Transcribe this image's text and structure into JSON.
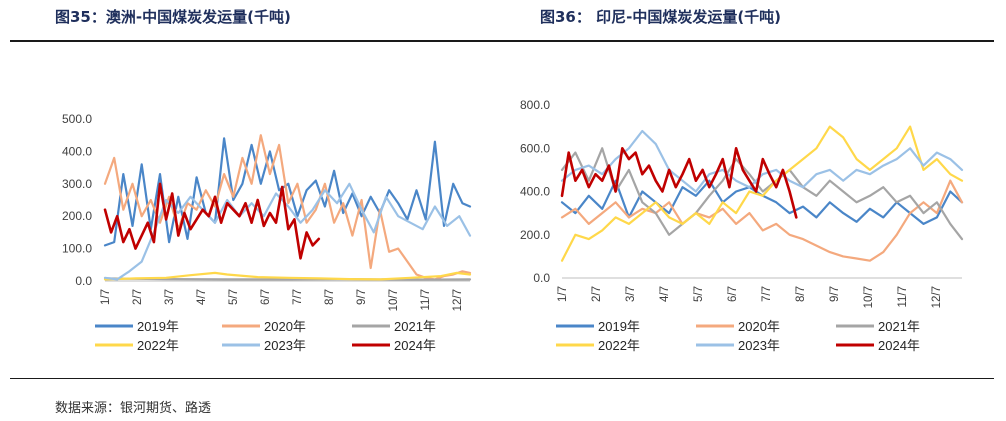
{
  "figures": {
    "left_title": "图35：澳洲-中国煤炭发运量(千吨)",
    "right_title": "图36：  印尼-中国煤炭发运量(千吨)"
  },
  "source_text": "数据来源：银河期货、路透",
  "colors": {
    "2019年": "#4a86c8",
    "2020年": "#f4a97e",
    "2021年": "#a5a5a5",
    "2022年": "#ffd84a",
    "2023年": "#9bc1e6",
    "2024年": "#c00000"
  },
  "chart_data": [
    {
      "type": "line",
      "title": "澳洲-中国煤炭发运量(千吨)",
      "x_tick_labels": [
        "1/7",
        "2/7",
        "3/7",
        "4/7",
        "5/7",
        "6/7",
        "7/7",
        "8/7",
        "9/7",
        "10/7",
        "11/7",
        "12/7"
      ],
      "y_tick_labels": [
        "0.0",
        "100.0",
        "200.0",
        "300.0",
        "400.0",
        "500.0"
      ],
      "ylim": [
        0,
        500
      ],
      "xlim": [
        1,
        12.95
      ],
      "grid": false,
      "legend_position": "bottom",
      "series": [
        {
          "name": "2019年",
          "x": [
            1.0,
            1.3,
            1.6,
            1.9,
            2.2,
            2.5,
            2.8,
            3.1,
            3.4,
            3.7,
            4.0,
            4.3,
            4.6,
            4.9,
            5.2,
            5.5,
            5.8,
            6.1,
            6.4,
            6.7,
            7.0,
            7.3,
            7.6,
            7.9,
            8.2,
            8.5,
            8.8,
            9.1,
            9.4,
            9.7,
            10.0,
            10.3,
            10.6,
            10.9,
            11.2,
            11.5,
            11.8,
            12.1,
            12.4,
            12.7,
            12.95
          ],
          "y": [
            110,
            120,
            330,
            170,
            360,
            160,
            330,
            120,
            260,
            130,
            320,
            210,
            180,
            440,
            250,
            300,
            420,
            300,
            400,
            280,
            300,
            200,
            280,
            310,
            230,
            340,
            210,
            270,
            200,
            260,
            210,
            280,
            240,
            190,
            280,
            190,
            430,
            170,
            300,
            240,
            230
          ]
        },
        {
          "name": "2020年",
          "x": [
            1.0,
            1.3,
            1.6,
            1.9,
            2.2,
            2.5,
            2.8,
            3.1,
            3.4,
            3.7,
            4.0,
            4.3,
            4.6,
            4.9,
            5.2,
            5.5,
            5.8,
            6.1,
            6.4,
            6.7,
            7.0,
            7.3,
            7.6,
            7.9,
            8.2,
            8.5,
            8.8,
            9.1,
            9.4,
            9.7,
            10.0,
            10.3,
            10.6,
            10.9,
            11.2,
            11.5,
            11.8,
            12.1,
            12.4,
            12.7,
            12.95
          ],
          "y": [
            300,
            380,
            220,
            300,
            200,
            250,
            180,
            260,
            160,
            240,
            220,
            280,
            230,
            330,
            260,
            380,
            300,
            450,
            330,
            420,
            240,
            300,
            180,
            220,
            300,
            180,
            240,
            140,
            250,
            40,
            220,
            90,
            100,
            60,
            20,
            10,
            5,
            15,
            20,
            30,
            25
          ]
        },
        {
          "name": "2021年",
          "x": [
            1.0,
            3.0,
            5.0,
            7.0,
            9.0,
            11.0,
            12.95
          ],
          "y": [
            8,
            6,
            5,
            5,
            6,
            4,
            5
          ]
        },
        {
          "name": "2022年",
          "x": [
            1.0,
            2.0,
            3.0,
            3.8,
            4.6,
            5.0,
            6.0,
            7.0,
            8.0,
            9.0,
            10.0,
            11.0,
            12.0,
            12.5,
            12.95
          ],
          "y": [
            5,
            8,
            10,
            18,
            25,
            20,
            12,
            10,
            8,
            6,
            5,
            10,
            15,
            25,
            20
          ]
        },
        {
          "name": "2023年",
          "x": [
            1.0,
            1.4,
            1.8,
            2.2,
            2.6,
            3.0,
            3.4,
            3.8,
            4.2,
            4.6,
            5.0,
            5.4,
            5.8,
            6.2,
            6.6,
            7.0,
            7.4,
            7.8,
            8.2,
            8.6,
            9.0,
            9.4,
            9.8,
            10.2,
            10.6,
            11.0,
            11.4,
            11.8,
            12.2,
            12.6,
            12.95
          ],
          "y": [
            10,
            5,
            30,
            60,
            150,
            250,
            210,
            260,
            220,
            180,
            250,
            200,
            240,
            200,
            270,
            230,
            180,
            220,
            280,
            240,
            300,
            220,
            150,
            260,
            200,
            180,
            160,
            230,
            170,
            200,
            140
          ]
        },
        {
          "name": "2024年",
          "x": [
            1.0,
            1.2,
            1.4,
            1.6,
            1.8,
            2.0,
            2.2,
            2.4,
            2.6,
            2.8,
            3.0,
            3.2,
            3.4,
            3.6,
            3.8,
            4.0,
            4.2,
            4.4,
            4.6,
            4.8,
            5.0,
            5.2,
            5.4,
            5.6,
            5.8,
            6.0,
            6.2,
            6.4,
            6.6,
            6.8,
            7.0,
            7.2,
            7.4,
            7.6,
            7.8,
            8.0
          ],
          "y": [
            220,
            150,
            200,
            120,
            160,
            100,
            140,
            180,
            120,
            300,
            190,
            270,
            140,
            210,
            160,
            190,
            220,
            200,
            260,
            180,
            240,
            220,
            200,
            240,
            180,
            250,
            170,
            210,
            180,
            290,
            160,
            190,
            70,
            150,
            110,
            130
          ]
        }
      ]
    },
    {
      "type": "line",
      "title": "印尼-中国煤炭发运量(千吨)",
      "x_tick_labels": [
        "1/7",
        "2/7",
        "3/7",
        "4/7",
        "5/7",
        "6/7",
        "7/7",
        "8/7",
        "9/7",
        "10/7",
        "11/7",
        "12/7"
      ],
      "y_tick_labels": [
        "0.0",
        "200.0",
        "400.0",
        "600.0",
        "800.0"
      ],
      "ylim": [
        0,
        800
      ],
      "xlim": [
        1,
        12.95
      ],
      "grid": false,
      "legend_position": "bottom",
      "series": [
        {
          "name": "2019年",
          "x": [
            1.0,
            1.4,
            1.8,
            2.2,
            2.6,
            3.0,
            3.4,
            3.8,
            4.2,
            4.6,
            5.0,
            5.4,
            5.8,
            6.2,
            6.6,
            7.0,
            7.4,
            7.8,
            8.2,
            8.6,
            9.0,
            9.4,
            9.8,
            10.2,
            10.6,
            11.0,
            11.4,
            11.8,
            12.2,
            12.6,
            12.95
          ],
          "y": [
            350,
            300,
            380,
            320,
            450,
            280,
            400,
            350,
            300,
            420,
            380,
            450,
            350,
            400,
            420,
            380,
            350,
            300,
            330,
            280,
            350,
            300,
            260,
            320,
            280,
            350,
            300,
            250,
            280,
            400,
            350
          ]
        },
        {
          "name": "2020年",
          "x": [
            1.0,
            1.4,
            1.8,
            2.2,
            2.6,
            3.0,
            3.4,
            3.8,
            4.2,
            4.6,
            5.0,
            5.4,
            5.8,
            6.2,
            6.6,
            7.0,
            7.4,
            7.8,
            8.2,
            8.6,
            9.0,
            9.4,
            9.8,
            10.2,
            10.6,
            11.0,
            11.4,
            11.8,
            12.2,
            12.6,
            12.95
          ],
          "y": [
            280,
            320,
            250,
            300,
            350,
            280,
            320,
            300,
            350,
            250,
            300,
            280,
            320,
            250,
            300,
            220,
            250,
            200,
            180,
            150,
            120,
            100,
            90,
            80,
            120,
            200,
            300,
            350,
            300,
            450,
            350
          ]
        },
        {
          "name": "2021年",
          "x": [
            1.0,
            1.4,
            1.8,
            2.2,
            2.6,
            3.0,
            3.4,
            3.8,
            4.2,
            4.6,
            5.0,
            5.4,
            5.8,
            6.2,
            6.6,
            7.0,
            7.4,
            7.8,
            8.2,
            8.6,
            9.0,
            9.4,
            9.8,
            10.2,
            10.6,
            11.0,
            11.4,
            11.8,
            12.2,
            12.6,
            12.95
          ],
          "y": [
            500,
            580,
            450,
            600,
            400,
            500,
            350,
            300,
            200,
            250,
            300,
            380,
            450,
            550,
            480,
            400,
            450,
            500,
            420,
            380,
            450,
            400,
            350,
            380,
            420,
            350,
            380,
            300,
            350,
            250,
            180
          ]
        },
        {
          "name": "2022年",
          "x": [
            1.0,
            1.4,
            1.8,
            2.2,
            2.6,
            3.0,
            3.4,
            3.8,
            4.2,
            4.6,
            5.0,
            5.4,
            5.8,
            6.2,
            6.6,
            7.0,
            7.4,
            7.8,
            8.2,
            8.6,
            9.0,
            9.4,
            9.8,
            10.2,
            10.6,
            11.0,
            11.4,
            11.8,
            12.2,
            12.6,
            12.95
          ],
          "y": [
            80,
            200,
            180,
            220,
            280,
            250,
            300,
            350,
            280,
            250,
            300,
            250,
            350,
            300,
            400,
            380,
            450,
            500,
            550,
            600,
            700,
            650,
            550,
            500,
            550,
            600,
            700,
            500,
            550,
            480,
            450
          ]
        },
        {
          "name": "2023年",
          "x": [
            1.0,
            1.4,
            1.8,
            2.2,
            2.6,
            3.0,
            3.4,
            3.8,
            4.2,
            4.6,
            5.0,
            5.4,
            5.8,
            6.2,
            6.6,
            7.0,
            7.4,
            7.8,
            8.2,
            8.6,
            9.0,
            9.4,
            9.8,
            10.2,
            10.6,
            11.0,
            11.4,
            11.8,
            12.2,
            12.6,
            12.95
          ],
          "y": [
            450,
            500,
            520,
            480,
            550,
            600,
            680,
            620,
            500,
            450,
            400,
            480,
            500,
            450,
            420,
            480,
            500,
            450,
            420,
            480,
            500,
            450,
            500,
            480,
            520,
            550,
            600,
            520,
            580,
            550,
            500
          ]
        },
        {
          "name": "2024年",
          "x": [
            1.0,
            1.2,
            1.4,
            1.6,
            1.8,
            2.0,
            2.2,
            2.4,
            2.6,
            2.8,
            3.0,
            3.2,
            3.4,
            3.6,
            3.8,
            4.0,
            4.2,
            4.4,
            4.6,
            4.8,
            5.0,
            5.2,
            5.4,
            5.6,
            5.8,
            6.0,
            6.2,
            6.4,
            6.6,
            6.8,
            7.0,
            7.2,
            7.4,
            7.6,
            7.8,
            8.0
          ],
          "y": [
            380,
            580,
            450,
            500,
            420,
            480,
            450,
            520,
            400,
            600,
            550,
            580,
            480,
            520,
            450,
            400,
            500,
            420,
            480,
            550,
            450,
            500,
            420,
            480,
            550,
            420,
            600,
            500,
            450,
            400,
            550,
            480,
            420,
            500,
            400,
            280
          ]
        }
      ]
    }
  ]
}
